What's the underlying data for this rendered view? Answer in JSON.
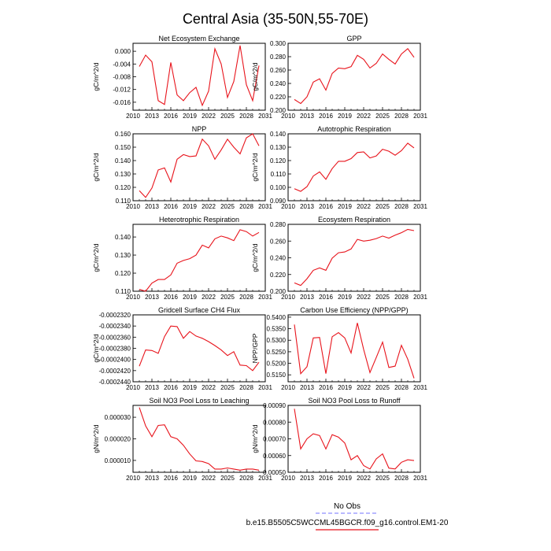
{
  "title": "Central Asia (35-50N,55-70E)",
  "colors": {
    "series": "#e8131b",
    "obs": "#8f8fff"
  },
  "legend": {
    "obs_label": "No Obs",
    "model_label": "b.e15.B5505C5WCCML45BGCR.f09_g16.control.EM1-20"
  },
  "chart_data": [
    {
      "type": "line",
      "title": "Net Ecosystem Exchange",
      "ylabel": "gC/m^2/d",
      "xlim": [
        2010,
        2031
      ],
      "xticks": [
        "2010",
        "2013",
        "2016",
        "2019",
        "2022",
        "2025",
        "2028",
        "2031"
      ],
      "ylim": [
        -0.0185,
        0.0025
      ],
      "yticks": [
        "0.000",
        "-0.004",
        "-0.008",
        "-0.012",
        "-0.016"
      ],
      "x": [
        2011,
        2012,
        2013,
        2014,
        2015,
        2016,
        2017,
        2018,
        2019,
        2020,
        2021,
        2022,
        2023,
        2024,
        2025,
        2026,
        2027,
        2028,
        2029,
        2030
      ],
      "values": [
        -0.0048,
        -0.0012,
        -0.0033,
        -0.0155,
        -0.0167,
        -0.0035,
        -0.0137,
        -0.0155,
        -0.013,
        -0.0113,
        -0.017,
        -0.0125,
        0.0008,
        -0.004,
        -0.0145,
        -0.0095,
        0.0018,
        -0.0105,
        -0.0155,
        -0.0045
      ]
    },
    {
      "type": "line",
      "title": "GPP",
      "ylabel": "gC/m^2/d",
      "xlim": [
        2010,
        2031
      ],
      "xticks": [
        "2010",
        "2013",
        "2016",
        "2019",
        "2022",
        "2025",
        "2028",
        "2031"
      ],
      "ylim": [
        0.2,
        0.3
      ],
      "yticks": [
        "0.200",
        "0.220",
        "0.240",
        "0.260",
        "0.280",
        "0.300"
      ],
      "x": [
        2011,
        2012,
        2013,
        2014,
        2015,
        2016,
        2017,
        2018,
        2019,
        2020,
        2021,
        2022,
        2023,
        2024,
        2025,
        2026,
        2027,
        2028,
        2029,
        2030
      ],
      "values": [
        0.216,
        0.21,
        0.22,
        0.242,
        0.247,
        0.23,
        0.255,
        0.263,
        0.262,
        0.265,
        0.282,
        0.276,
        0.263,
        0.27,
        0.284,
        0.276,
        0.269,
        0.284,
        0.292,
        0.279
      ]
    },
    {
      "type": "line",
      "title": "NPP",
      "ylabel": "gC/m^2/d",
      "xlim": [
        2010,
        2031
      ],
      "xticks": [
        "2010",
        "2013",
        "2016",
        "2019",
        "2022",
        "2025",
        "2028",
        "2031"
      ],
      "ylim": [
        0.11,
        0.16
      ],
      "yticks": [
        "0.110",
        "0.120",
        "0.130",
        "0.140",
        "0.150",
        "0.160"
      ],
      "x": [
        2011,
        2012,
        2013,
        2014,
        2015,
        2016,
        2017,
        2018,
        2019,
        2020,
        2021,
        2022,
        2023,
        2024,
        2025,
        2026,
        2027,
        2028,
        2029,
        2030
      ],
      "values": [
        0.1175,
        0.1125,
        0.1195,
        0.133,
        0.1345,
        0.124,
        0.141,
        0.1445,
        0.143,
        0.1435,
        0.156,
        0.151,
        0.141,
        0.148,
        0.156,
        0.15,
        0.145,
        0.157,
        0.16,
        0.151
      ]
    },
    {
      "type": "line",
      "title": "Autotrophic Respiration",
      "ylabel": "gC/m^2/d",
      "xlim": [
        2010,
        2031
      ],
      "xticks": [
        "2010",
        "2013",
        "2016",
        "2019",
        "2022",
        "2025",
        "2028",
        "2031"
      ],
      "ylim": [
        0.09,
        0.14
      ],
      "yticks": [
        "0.090",
        "0.100",
        "0.110",
        "0.120",
        "0.130",
        "0.140"
      ],
      "x": [
        2011,
        2012,
        2013,
        2014,
        2015,
        2016,
        2017,
        2018,
        2019,
        2020,
        2021,
        2022,
        2023,
        2024,
        2025,
        2026,
        2027,
        2028,
        2029,
        2030
      ],
      "values": [
        0.099,
        0.097,
        0.1005,
        0.1085,
        0.1115,
        0.106,
        0.114,
        0.1195,
        0.1195,
        0.1215,
        0.126,
        0.1265,
        0.122,
        0.1235,
        0.1285,
        0.127,
        0.124,
        0.1275,
        0.133,
        0.1295
      ]
    },
    {
      "type": "line",
      "title": "Heterotrophic Respiration",
      "ylabel": "gC/m^2/d",
      "xlim": [
        2010,
        2031
      ],
      "xticks": [
        "2010",
        "2013",
        "2016",
        "2019",
        "2022",
        "2025",
        "2028",
        "2031"
      ],
      "ylim": [
        0.11,
        0.147
      ],
      "yticks": [
        "0.110",
        "0.120",
        "0.130",
        "0.140"
      ],
      "x": [
        2011,
        2012,
        2013,
        2014,
        2015,
        2016,
        2017,
        2018,
        2019,
        2020,
        2021,
        2022,
        2023,
        2024,
        2025,
        2026,
        2027,
        2028,
        2029,
        2030
      ],
      "values": [
        0.111,
        0.11,
        0.1145,
        0.1165,
        0.1165,
        0.119,
        0.1255,
        0.127,
        0.128,
        0.13,
        0.1355,
        0.134,
        0.139,
        0.1405,
        0.1395,
        0.138,
        0.144,
        0.143,
        0.1405,
        0.1425
      ]
    },
    {
      "type": "line",
      "title": "Ecosystem Respiration",
      "ylabel": "gC/m^2/d",
      "xlim": [
        2010,
        2031
      ],
      "xticks": [
        "2010",
        "2013",
        "2016",
        "2019",
        "2022",
        "2025",
        "2028",
        "2031"
      ],
      "ylim": [
        0.2,
        0.28
      ],
      "yticks": [
        "0.200",
        "0.220",
        "0.240",
        "0.260",
        "0.280"
      ],
      "x": [
        2011,
        2012,
        2013,
        2014,
        2015,
        2016,
        2017,
        2018,
        2019,
        2020,
        2021,
        2022,
        2023,
        2024,
        2025,
        2026,
        2027,
        2028,
        2029,
        2030
      ],
      "values": [
        0.21,
        0.207,
        0.215,
        0.225,
        0.228,
        0.225,
        0.2395,
        0.246,
        0.247,
        0.2505,
        0.262,
        0.26,
        0.261,
        0.263,
        0.266,
        0.2635,
        0.267,
        0.27,
        0.274,
        0.2725
      ]
    },
    {
      "type": "line",
      "title": "Gridcell Surface CH4 Flux",
      "ylabel": "gC/m^2/d",
      "xlim": [
        2010,
        2031
      ],
      "xticks": [
        "2010",
        "2013",
        "2016",
        "2019",
        "2022",
        "2025",
        "2028",
        "2031"
      ],
      "ylim": [
        -0.000244,
        -0.000232
      ],
      "yticks": [
        "-0.0002320",
        "-0.0002340",
        "-0.0002360",
        "-0.0002380",
        "-0.0002400",
        "-0.0002420",
        "-0.0002440"
      ],
      "x": [
        2011,
        2012,
        2013,
        2014,
        2015,
        2016,
        2017,
        2018,
        2019,
        2020,
        2021,
        2022,
        2023,
        2024,
        2025,
        2026,
        2027,
        2028,
        2029,
        2030
      ],
      "values": [
        -0.0002412,
        -0.0002383,
        -0.0002384,
        -0.0002389,
        -0.0002359,
        -0.000234,
        -0.0002341,
        -0.0002362,
        -0.000235,
        -0.0002358,
        -0.0002362,
        -0.0002368,
        -0.0002375,
        -0.0002383,
        -0.0002393,
        -0.0002386,
        -0.000241,
        -0.0002411,
        -0.000242,
        -0.0002405
      ]
    },
    {
      "type": "line",
      "title": "Carbon Use Efficiency (NPP/GPP)",
      "ylabel": "NPP/GPP",
      "xlim": [
        2010,
        2031
      ],
      "xticks": [
        "2010",
        "2013",
        "2016",
        "2019",
        "2022",
        "2025",
        "2028",
        "2031"
      ],
      "ylim": [
        0.512,
        0.541
      ],
      "yticks": [
        "0.5400",
        "0.5350",
        "0.5300",
        "0.5250",
        "0.5200",
        "0.5150"
      ],
      "x": [
        2011,
        2012,
        2013,
        2014,
        2015,
        2016,
        2017,
        2018,
        2019,
        2020,
        2021,
        2022,
        2023,
        2024,
        2025,
        2026,
        2027,
        2028,
        2029,
        2030
      ],
      "values": [
        0.5368,
        0.5155,
        0.5185,
        0.531,
        0.5312,
        0.5155,
        0.5315,
        0.5333,
        0.531,
        0.5245,
        0.5375,
        0.526,
        0.516,
        0.5225,
        0.5292,
        0.5182,
        0.5188,
        0.5278,
        0.5218,
        0.5135
      ]
    },
    {
      "type": "line",
      "title": "Soil NO3 Pool Loss to Leaching",
      "ylabel": "gN/m^2/d",
      "xlim": [
        2010,
        2031
      ],
      "xticks": [
        "2010",
        "2013",
        "2016",
        "2019",
        "2022",
        "2025",
        "2028",
        "2031"
      ],
      "ylim": [
        4.5e-06,
        3.55e-05
      ],
      "yticks": [
        "0.000030",
        "0.000020",
        "0.000010"
      ],
      "x": [
        2011,
        2012,
        2013,
        2014,
        2015,
        2016,
        2017,
        2018,
        2019,
        2020,
        2021,
        2022,
        2023,
        2024,
        2025,
        2026,
        2027,
        2028,
        2029,
        2030
      ],
      "values": [
        3.45e-05,
        2.6e-05,
        2.1e-05,
        2.62e-05,
        2.65e-05,
        2.1e-05,
        2e-05,
        1.7e-05,
        1.3e-05,
        9.8e-06,
        9.5e-06,
        8.5e-06,
        6e-06,
        6e-06,
        6.5e-06,
        6e-06,
        5.5e-06,
        6e-06,
        6e-06,
        5.5e-06
      ]
    },
    {
      "type": "line",
      "title": "Soil NO3 Pool Loss to Runoff",
      "ylabel": "gN/m^2/d",
      "xlim": [
        2010,
        2031
      ],
      "xticks": [
        "2010",
        "2013",
        "2016",
        "2019",
        "2022",
        "2025",
        "2028",
        "2031"
      ],
      "ylim": [
        0.0005,
        0.0009
      ],
      "yticks": [
        "0.00090",
        "0.00080",
        "0.00070",
        "0.00060",
        "0.00050"
      ],
      "x": [
        2011,
        2012,
        2013,
        2014,
        2015,
        2016,
        2017,
        2018,
        2019,
        2020,
        2021,
        2022,
        2023,
        2024,
        2025,
        2026,
        2027,
        2028,
        2029,
        2030
      ],
      "values": [
        0.00088,
        0.00064,
        0.0007,
        0.00073,
        0.00072,
        0.00064,
        0.000725,
        0.00071,
        0.000675,
        0.000575,
        0.0006,
        0.00054,
        0.00052,
        0.00058,
        0.00061,
        0.000525,
        0.00052,
        0.00056,
        0.000575,
        0.00057
      ]
    }
  ]
}
